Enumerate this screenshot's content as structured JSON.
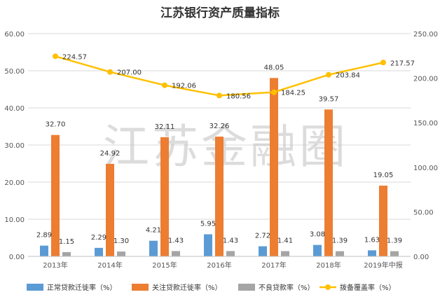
{
  "chart_data": {
    "type": "bar",
    "title": "江苏银行资产质量指标",
    "watermark": "江苏金融圈",
    "categories": [
      "2013年",
      "2014年",
      "2015年",
      "2016年",
      "2017年",
      "2018年",
      "2019年中报"
    ],
    "series": [
      {
        "name": "正常贷款迁徙率（%）",
        "type": "bar",
        "axis": "left",
        "color": "#5B9BD5",
        "values": [
          2.89,
          2.29,
          4.21,
          5.95,
          2.72,
          3.08,
          1.63
        ],
        "labels": [
          "2.89",
          "2.29",
          "4.21",
          "5.95",
          "2.72",
          "3.08",
          "1.63"
        ]
      },
      {
        "name": "关注贷款迁徙率（%）",
        "type": "bar",
        "axis": "left",
        "color": "#ED7D31",
        "values": [
          32.7,
          24.92,
          32.11,
          32.26,
          48.05,
          39.57,
          19.05
        ],
        "labels": [
          "32.70",
          "24.92",
          "32.11",
          "32.26",
          "48.05",
          "39.57",
          "19.05"
        ]
      },
      {
        "name": "不良贷款率（%）",
        "type": "bar",
        "axis": "left",
        "color": "#A5A5A5",
        "values": [
          1.15,
          1.3,
          1.43,
          1.43,
          1.41,
          1.39,
          1.39
        ],
        "labels": [
          "1.15",
          "1.30",
          "1.43",
          "1.43",
          "1.41",
          "1.39",
          "1.39"
        ]
      },
      {
        "name": "拨备覆盖率（%）",
        "type": "line",
        "axis": "right",
        "color": "#FFC000",
        "values": [
          224.57,
          207.0,
          192.06,
          180.56,
          184.25,
          203.84,
          217.57
        ],
        "labels": [
          "224.57",
          "207.00",
          "192.06",
          "180.56",
          "184.25",
          "203.84",
          "217.57"
        ]
      }
    ],
    "y_left": {
      "min": 0,
      "max": 60,
      "step": 10,
      "ticks": [
        "0.00",
        "10.00",
        "20.00",
        "30.00",
        "40.00",
        "50.00",
        "60.00"
      ]
    },
    "y_right": {
      "min": 0,
      "max": 250,
      "step": 50,
      "ticks": [
        "0.00",
        "50.00",
        "100.00",
        "150.00",
        "200.00",
        "250.00"
      ]
    },
    "grid": true,
    "legend_position": "bottom"
  }
}
